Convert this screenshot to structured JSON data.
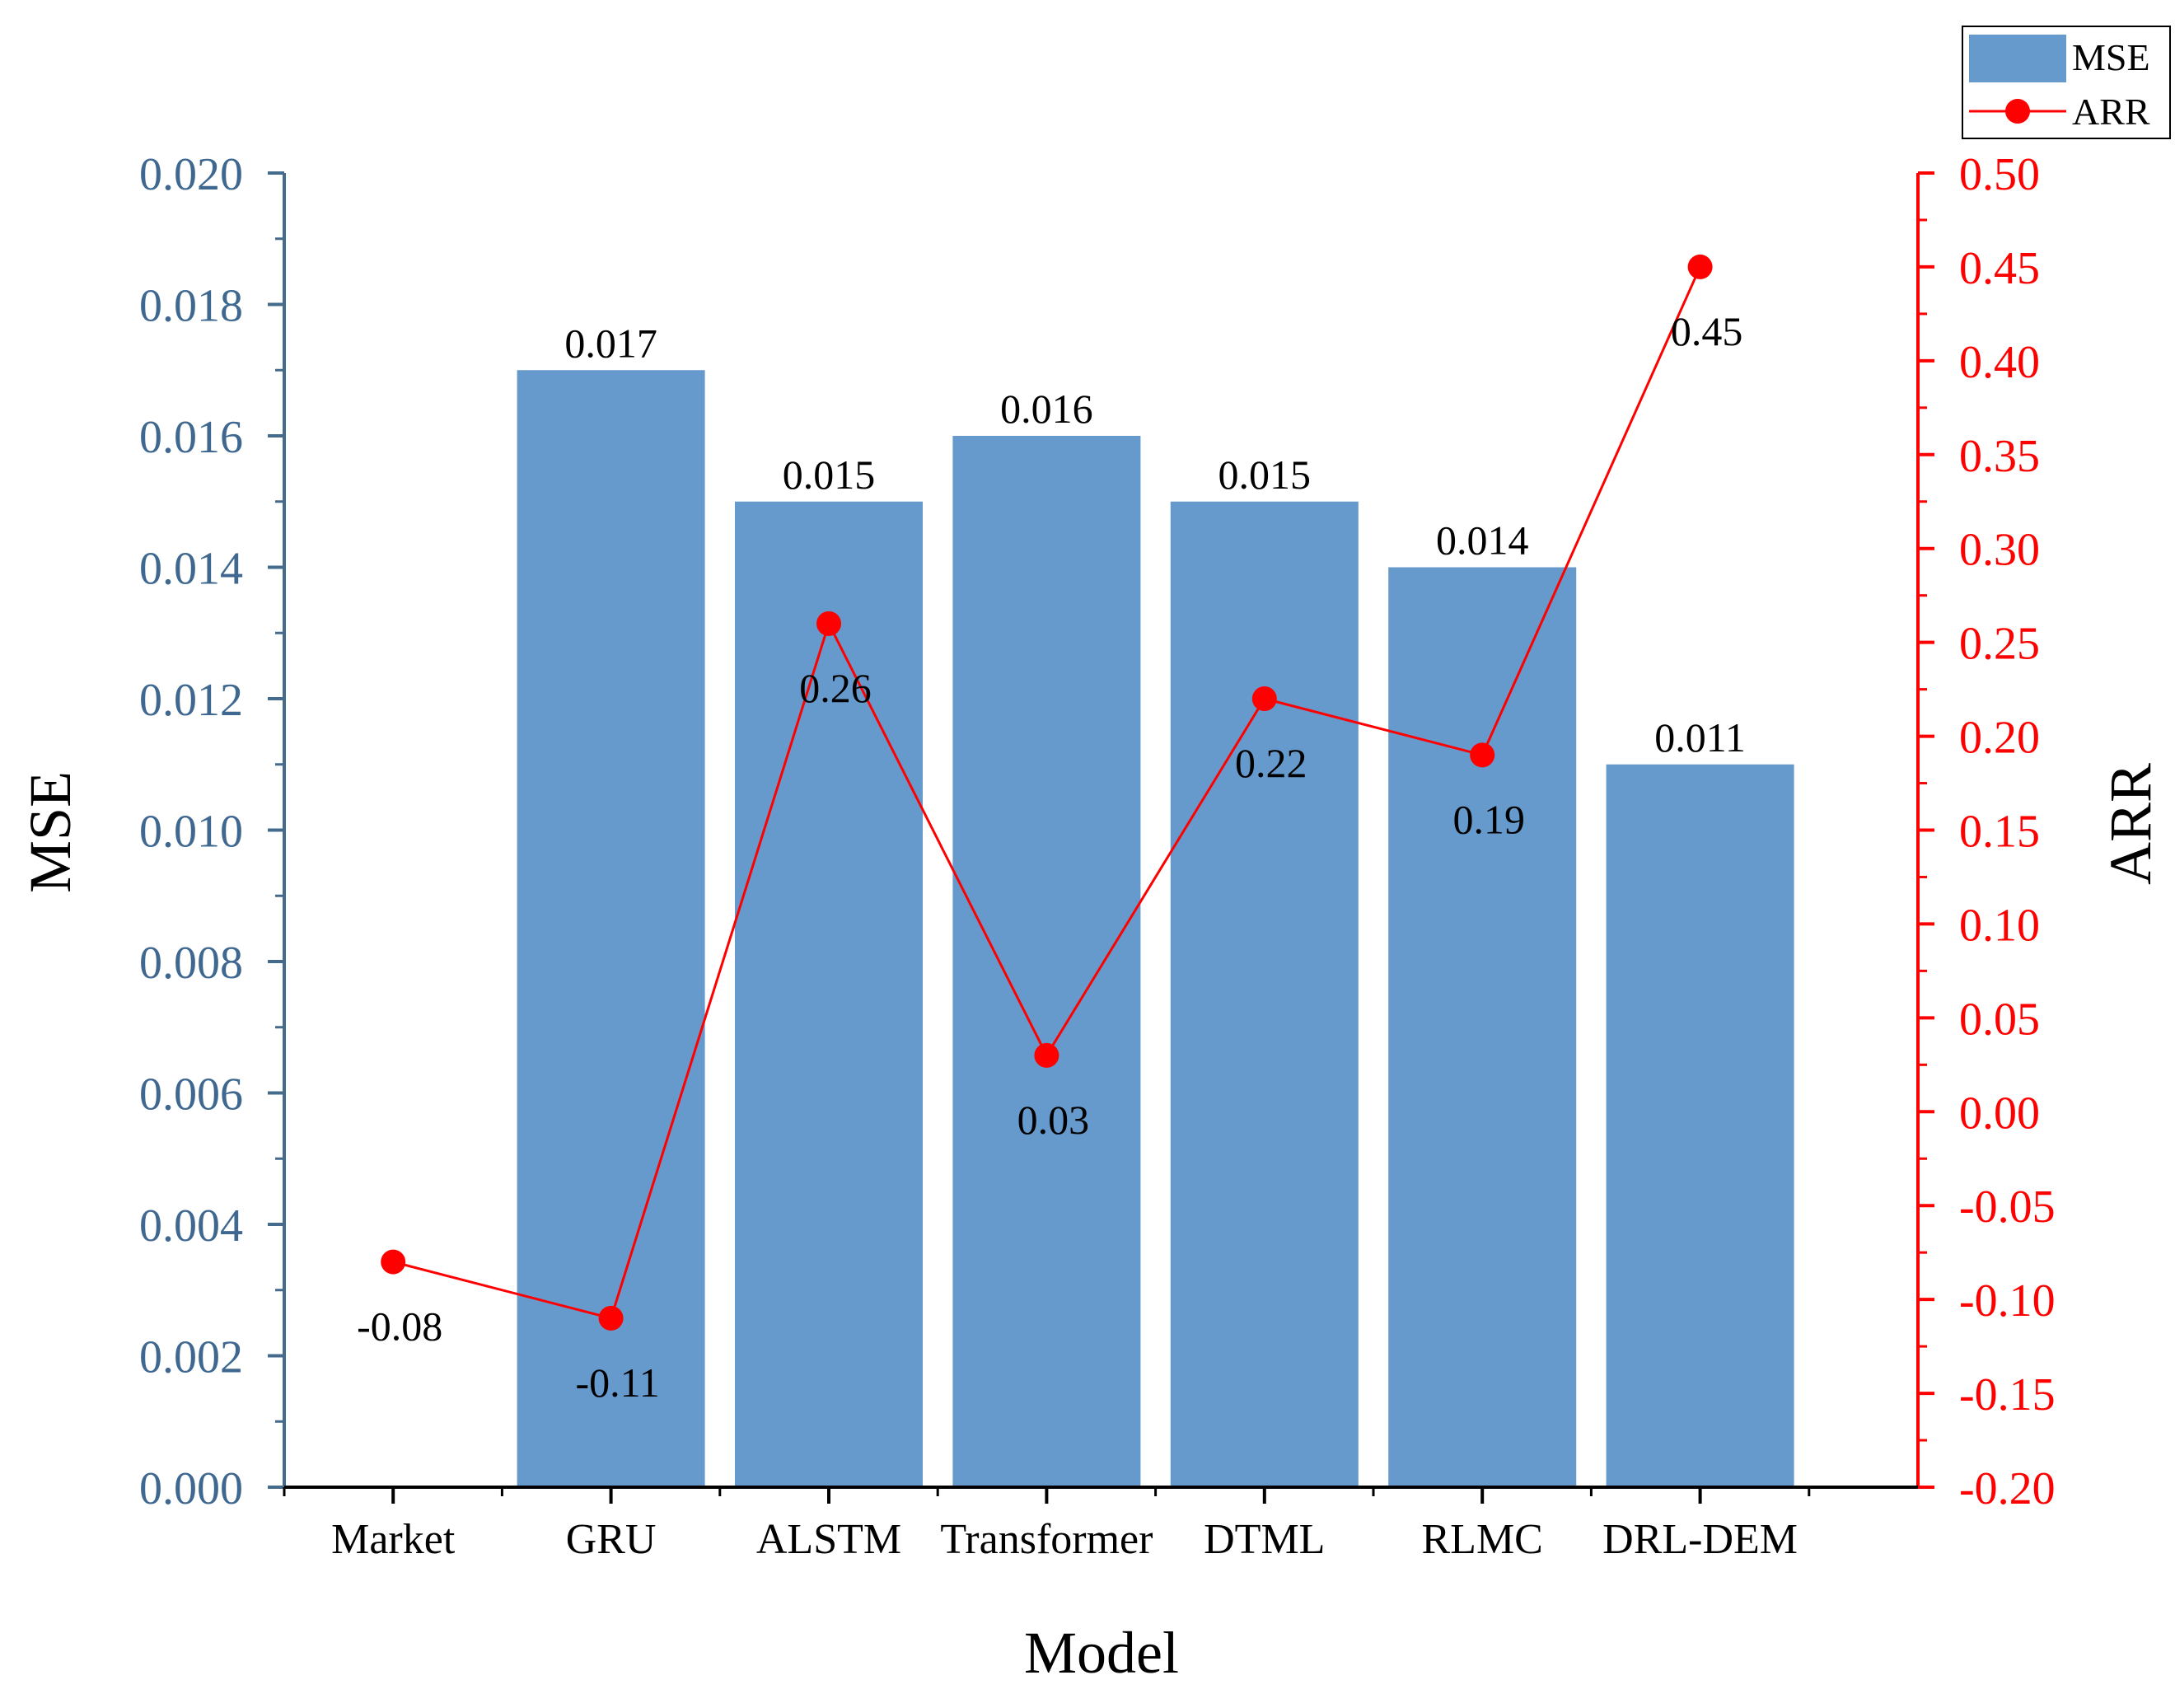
{
  "colors": {
    "bar": "#6699cc",
    "left_axis": "#456b8c",
    "left_tick_text": "#3f6890",
    "right_axis": "#ff0000",
    "line": "#ff0000",
    "text": "#000000"
  },
  "chart_data": {
    "type": "bar+line",
    "title": "",
    "xlabel": "Model",
    "ylabel_left": "MSE",
    "ylabel_right": "ARR",
    "categories": [
      "Market",
      "GRU",
      "ALSTM",
      "Transformer",
      "DTML",
      "RLMC",
      "DRL-DEM"
    ],
    "series": [
      {
        "name": "MSE",
        "type": "bar",
        "axis": "left",
        "values": [
          null,
          0.017,
          0.015,
          0.016,
          0.015,
          0.014,
          0.011
        ],
        "labels": [
          "",
          "0.017",
          "0.015",
          "0.016",
          "0.015",
          "0.014",
          "0.011"
        ]
      },
      {
        "name": "ARR",
        "type": "line",
        "axis": "right",
        "values": [
          -0.08,
          -0.11,
          0.26,
          0.03,
          0.22,
          0.19,
          0.45
        ],
        "labels": [
          "-0.08",
          "-0.11",
          "0.26",
          "0.03",
          "0.22",
          "0.19",
          "0.45"
        ]
      }
    ],
    "ylim_left": [
      0,
      0.02
    ],
    "ylim_right": [
      -0.2,
      0.5
    ],
    "left_ticks": [
      "0.000",
      "0.002",
      "0.004",
      "0.006",
      "0.008",
      "0.010",
      "0.012",
      "0.014",
      "0.016",
      "0.018",
      "0.020"
    ],
    "right_ticks": [
      "-0.20",
      "-0.15",
      "-0.10",
      "-0.05",
      "0.00",
      "0.05",
      "0.10",
      "0.15",
      "0.20",
      "0.25",
      "0.30",
      "0.35",
      "0.40",
      "0.45",
      "0.50"
    ],
    "legend": {
      "position": "top-right",
      "entries": [
        "MSE",
        "ARR"
      ]
    }
  }
}
